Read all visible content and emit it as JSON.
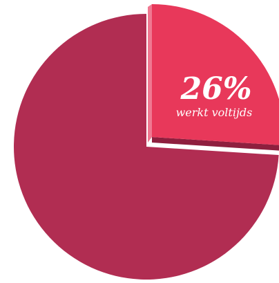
{
  "chart_data": {
    "type": "pie",
    "slices": [
      {
        "value": 26,
        "label": "26%",
        "description": "werkt voltijds",
        "color": "#e8385a"
      },
      {
        "value": 74,
        "label": "",
        "description": "",
        "color": "#b12d52"
      }
    ],
    "colors": {
      "highlight": "#e8385a",
      "highlight_side": "#8e1f3e",
      "highlight_edge": "#f07891",
      "main": "#b12d52"
    }
  }
}
